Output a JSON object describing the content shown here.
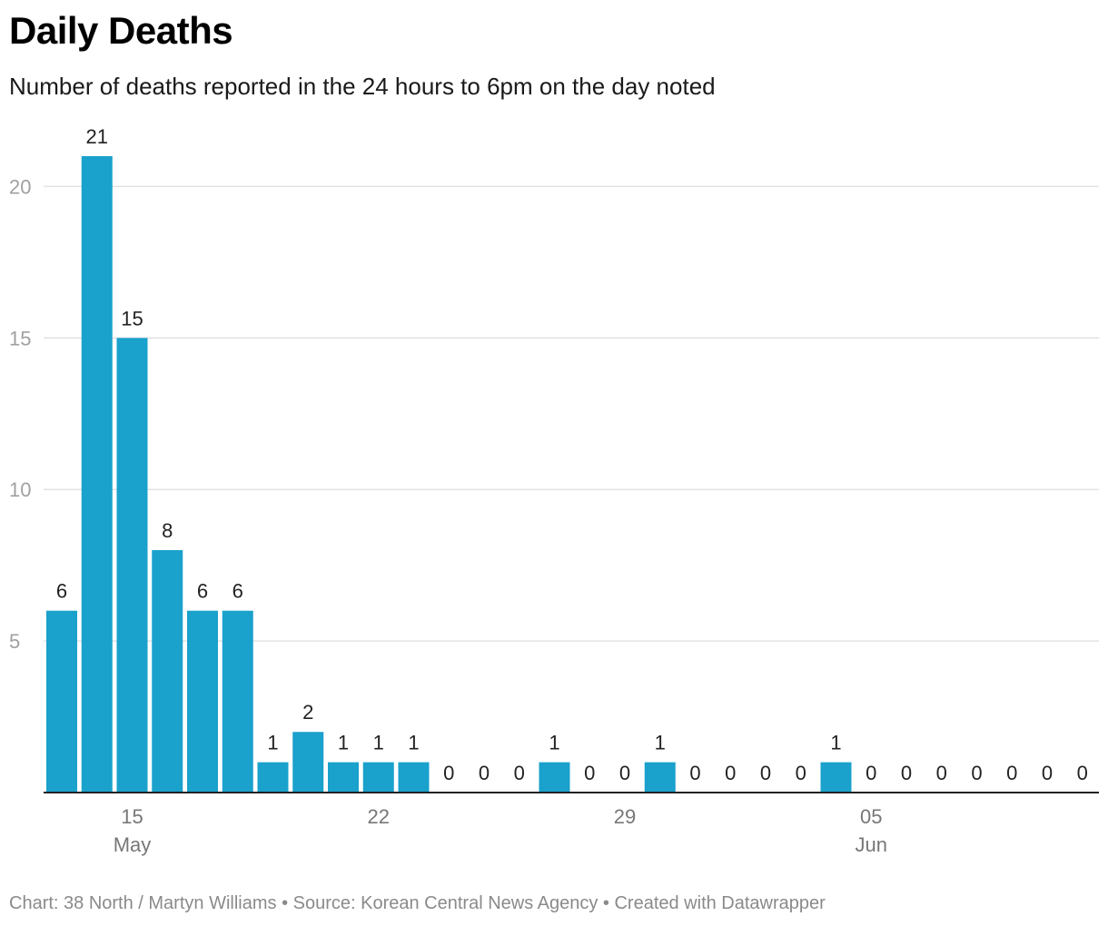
{
  "title": "Daily Deaths",
  "subtitle": "Number of deaths reported in the 24 hours to 6pm on the day noted",
  "footer": "Chart: 38 North / Martyn Williams • Source: Korean Central News Agency • Created with Datawrapper",
  "colors": {
    "bar": "#1aa1cc",
    "grid": "#e2e2e2",
    "axis": "#222222",
    "tick_label": "#a0a0a0",
    "x_label": "#777777",
    "value_label": "#222222"
  },
  "chart_data": {
    "type": "bar",
    "x": [
      "2022-05-13",
      "2022-05-14",
      "2022-05-15",
      "2022-05-16",
      "2022-05-17",
      "2022-05-18",
      "2022-05-19",
      "2022-05-20",
      "2022-05-21",
      "2022-05-22",
      "2022-05-23",
      "2022-05-24",
      "2022-05-25",
      "2022-05-26",
      "2022-05-27",
      "2022-05-28",
      "2022-05-29",
      "2022-05-30",
      "2022-05-31",
      "2022-06-01",
      "2022-06-02",
      "2022-06-03",
      "2022-06-04",
      "2022-06-05",
      "2022-06-06",
      "2022-06-07",
      "2022-06-08",
      "2022-06-09",
      "2022-06-10",
      "2022-06-11"
    ],
    "values": [
      6,
      21,
      15,
      8,
      6,
      6,
      1,
      2,
      1,
      1,
      1,
      0,
      0,
      0,
      1,
      0,
      0,
      1,
      0,
      0,
      0,
      0,
      1,
      0,
      0,
      0,
      0,
      0,
      0,
      0
    ],
    "ylim": [
      0,
      21
    ],
    "yticks": [
      5,
      10,
      15,
      20
    ],
    "xticks": [
      {
        "x": "2022-05-15",
        "label": "15",
        "sublabel": "May"
      },
      {
        "x": "2022-05-22",
        "label": "22",
        "sublabel": ""
      },
      {
        "x": "2022-05-29",
        "label": "29",
        "sublabel": ""
      },
      {
        "x": "2022-06-05",
        "label": "05",
        "sublabel": "Jun"
      }
    ],
    "grid": true,
    "data_labels": true
  }
}
